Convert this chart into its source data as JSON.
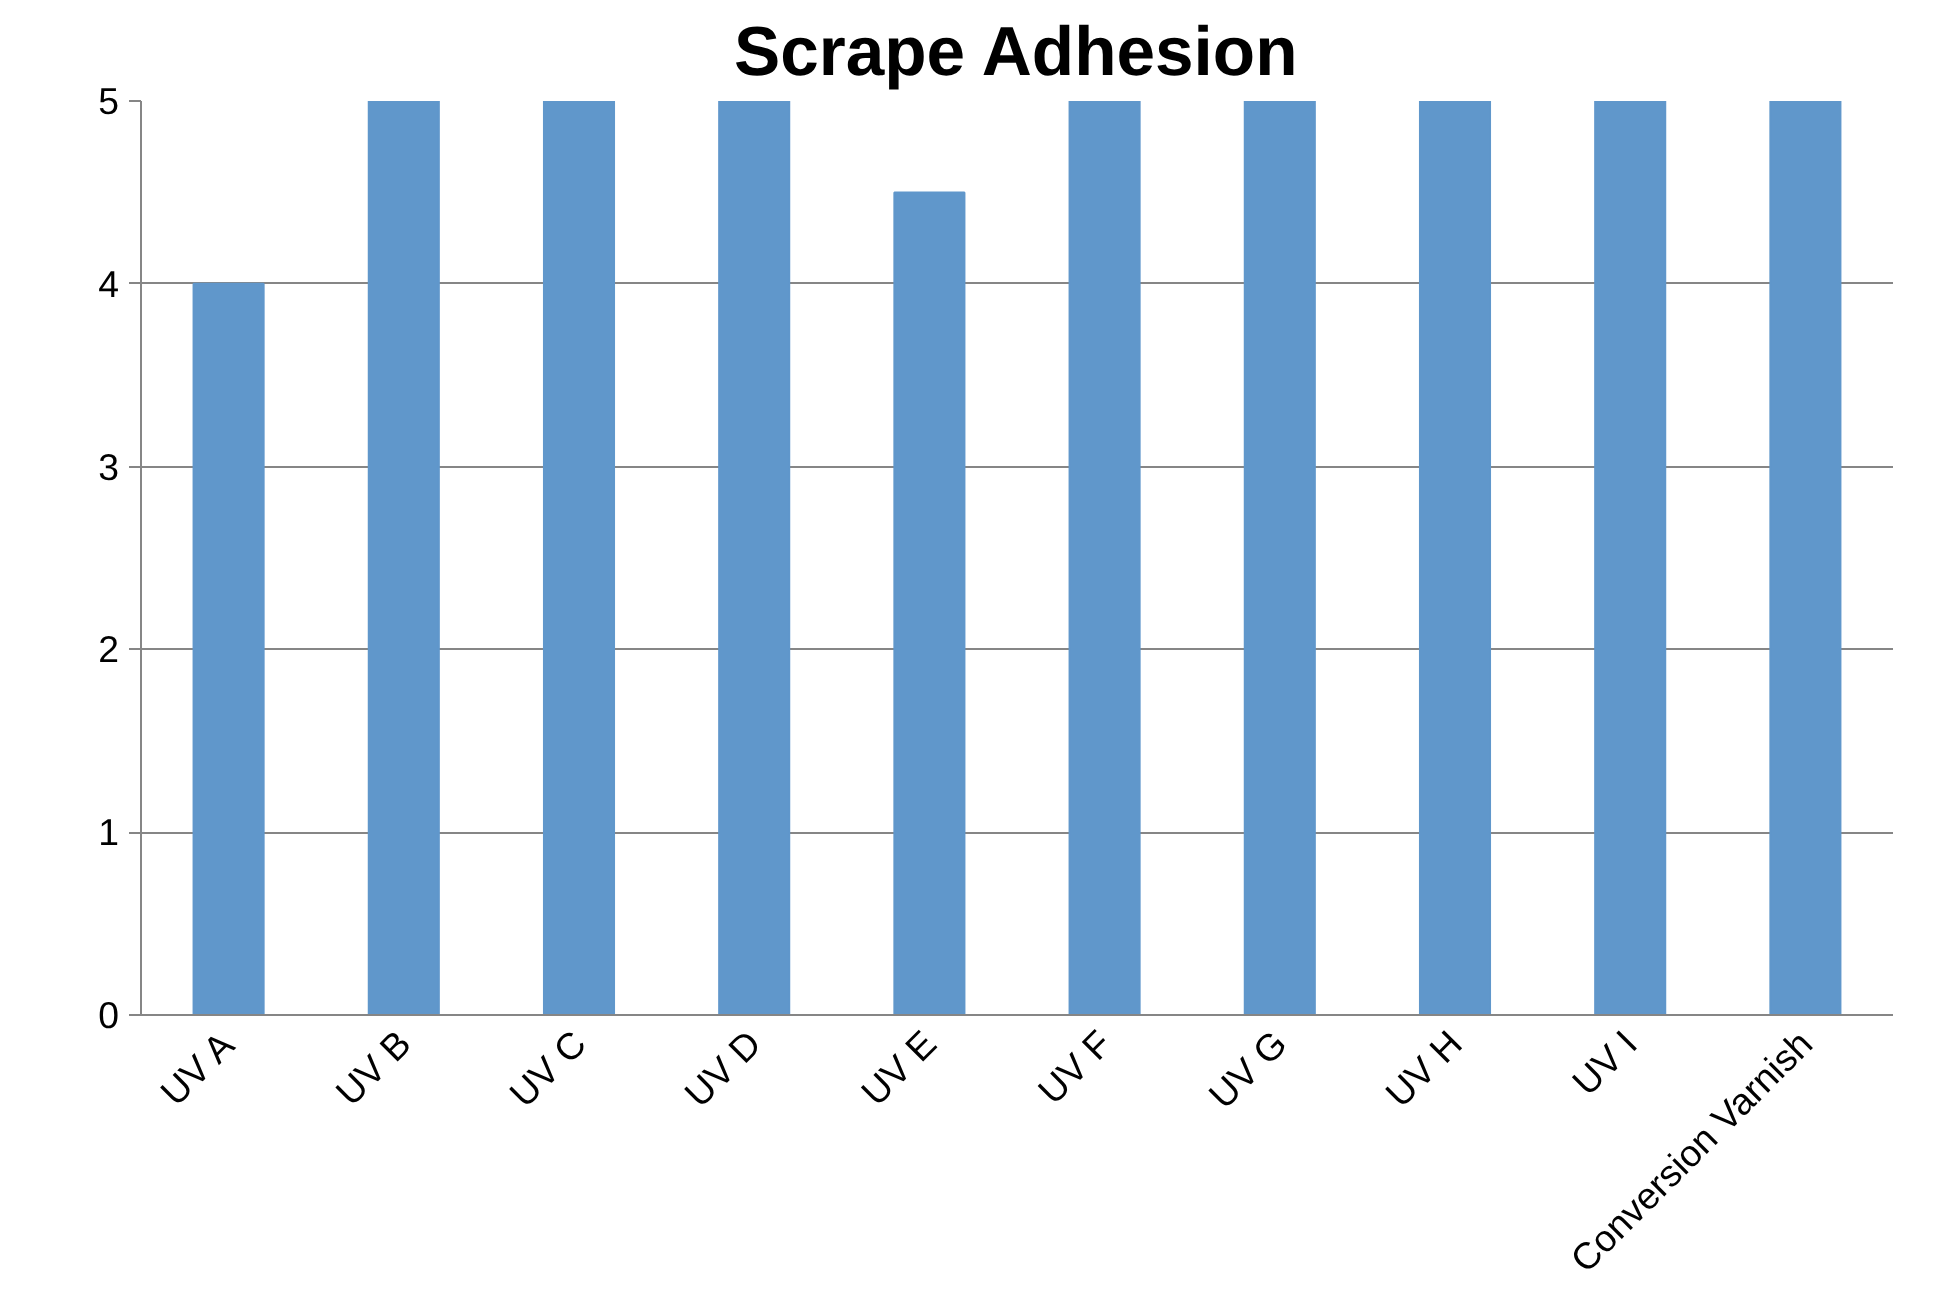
{
  "chart_data": {
    "type": "bar",
    "title": "Scrape Adhesion",
    "categories": [
      "UV A",
      "UV B",
      "UV C",
      "UV D",
      "UV E",
      "UV F",
      "UV G",
      "UV H",
      "UV I",
      "Conversion Varnish"
    ],
    "values": [
      4,
      5,
      5,
      5,
      4.5,
      5,
      5,
      5,
      5,
      5
    ],
    "color": "#6097cb",
    "ylim": [
      0,
      5
    ],
    "yticks": [
      0,
      1,
      2,
      3,
      4,
      5
    ],
    "grid": "y"
  }
}
